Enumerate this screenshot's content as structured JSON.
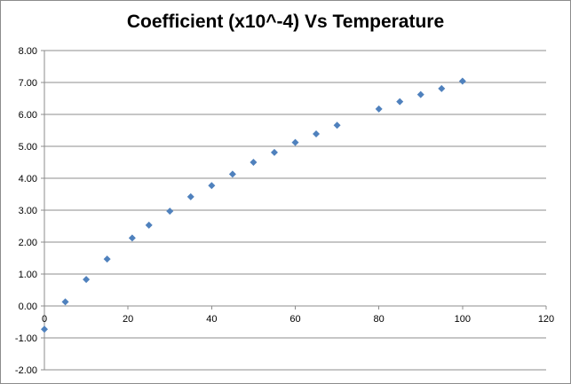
{
  "chart_data": {
    "type": "scatter",
    "title": "Coefficient (x10^-4) Vs Temperature",
    "xlabel": "",
    "ylabel": "",
    "xlim": [
      0,
      120
    ],
    "ylim": [
      -2,
      8
    ],
    "x_ticks": [
      0,
      20,
      40,
      60,
      80,
      100,
      120
    ],
    "y_ticks": [
      -2,
      -1,
      0,
      1,
      2,
      3,
      4,
      5,
      6,
      7,
      8
    ],
    "x_tick_labels": [
      "0",
      "20",
      "40",
      "60",
      "80",
      "100",
      "120"
    ],
    "y_tick_labels": [
      "-2.00",
      "-1.00",
      "0.00",
      "1.00",
      "2.00",
      "3.00",
      "4.00",
      "5.00",
      "6.00",
      "7.00",
      "8.00"
    ],
    "grid": "horizontal",
    "legend": "none",
    "marker": "diamond",
    "series": [
      {
        "color": "#4f81bd",
        "points": [
          {
            "x": 0,
            "y": -0.73
          },
          {
            "x": 5,
            "y": 0.13
          },
          {
            "x": 10,
            "y": 0.83
          },
          {
            "x": 15,
            "y": 1.47
          },
          {
            "x": 21,
            "y": 2.13
          },
          {
            "x": 25,
            "y": 2.53
          },
          {
            "x": 30,
            "y": 2.97
          },
          {
            "x": 35,
            "y": 3.42
          },
          {
            "x": 40,
            "y": 3.77
          },
          {
            "x": 45,
            "y": 4.13
          },
          {
            "x": 50,
            "y": 4.5
          },
          {
            "x": 55,
            "y": 4.81
          },
          {
            "x": 60,
            "y": 5.12
          },
          {
            "x": 65,
            "y": 5.39
          },
          {
            "x": 70,
            "y": 5.66
          },
          {
            "x": 80,
            "y": 6.17
          },
          {
            "x": 85,
            "y": 6.4
          },
          {
            "x": 90,
            "y": 6.62
          },
          {
            "x": 95,
            "y": 6.81
          },
          {
            "x": 100,
            "y": 7.04
          }
        ]
      }
    ]
  }
}
